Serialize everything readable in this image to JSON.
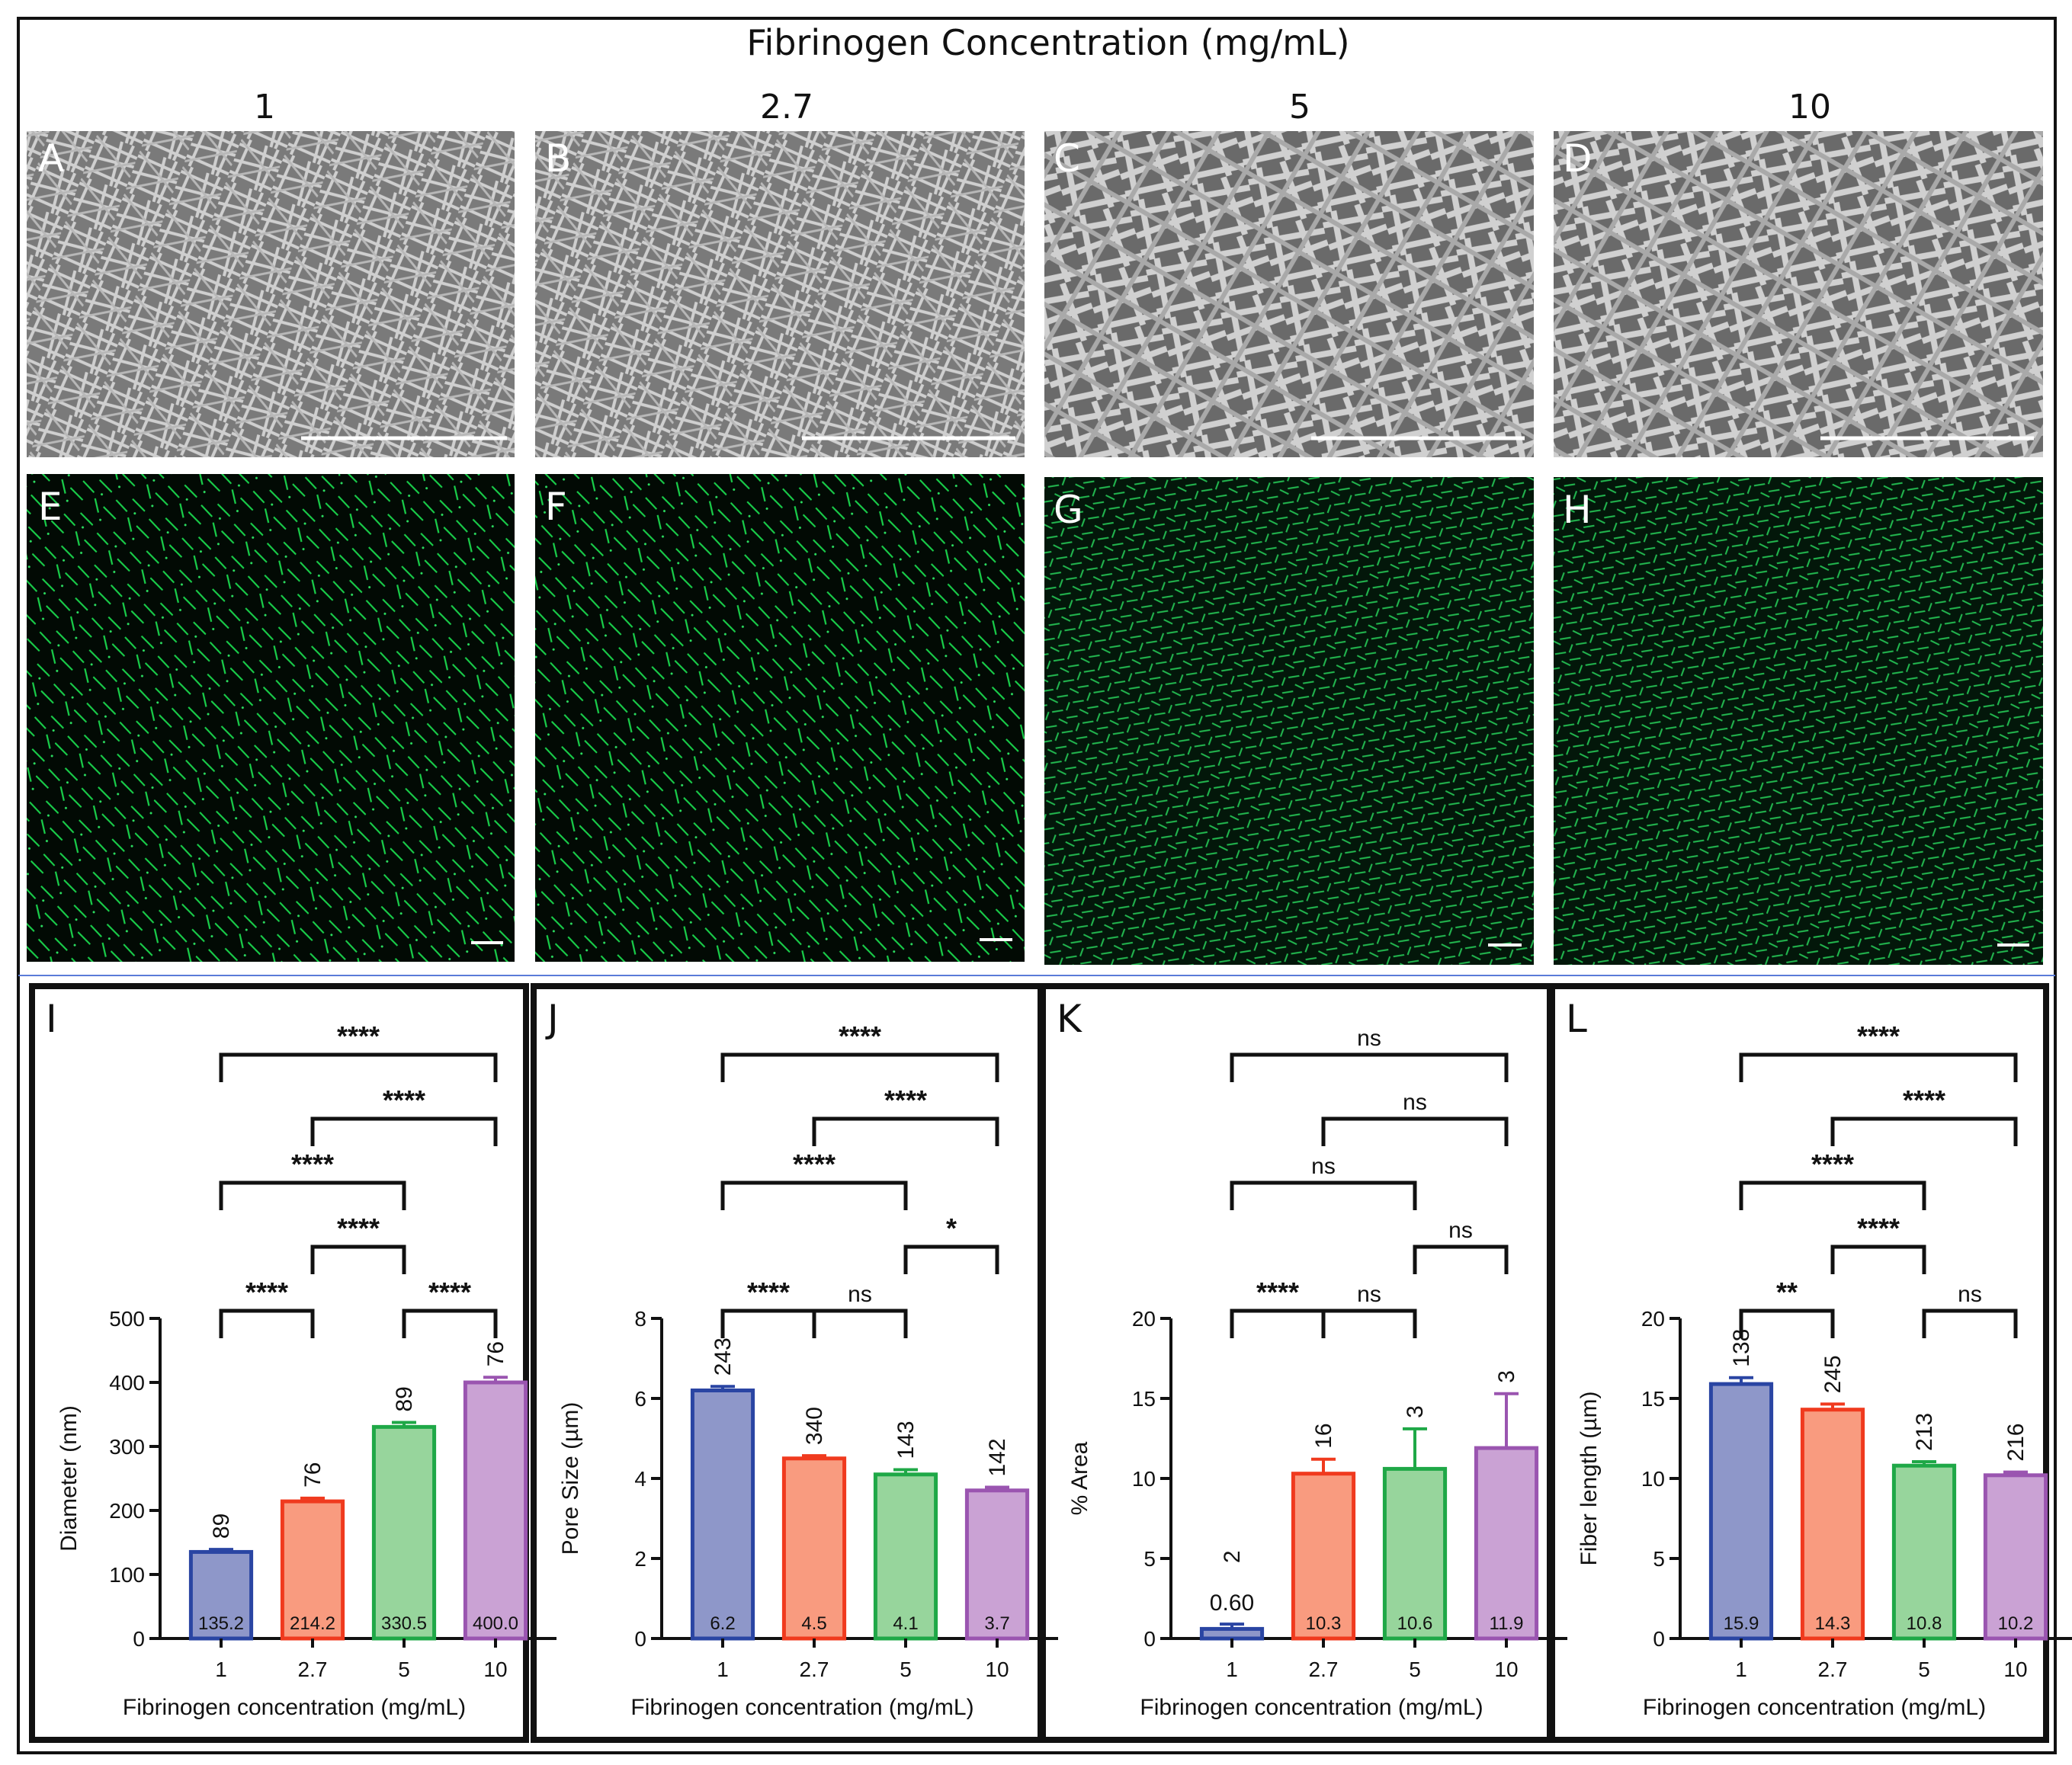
{
  "figure": {
    "title": "Fibrinogen Concentration (mg/mL)",
    "columns": [
      "1",
      "2.7",
      "5",
      "10"
    ],
    "sem_panels": [
      "A",
      "B",
      "C",
      "D"
    ],
    "fluor_panels": [
      "E",
      "F",
      "G",
      "H"
    ],
    "colors": {
      "sem": "#8a8a8a",
      "fluor": "#00c050",
      "bars": [
        {
          "fill": "#8e97c9",
          "stroke": "#2a45a3"
        },
        {
          "fill": "#f99b7f",
          "stroke": "#f03a1e"
        },
        {
          "fill": "#97d59c",
          "stroke": "#1fa847"
        },
        {
          "fill": "#caa2d4",
          "stroke": "#9a55b0"
        }
      ]
    }
  },
  "chart_data": [
    {
      "panel": "I",
      "type": "bar",
      "categories": [
        "1",
        "2.7",
        "5",
        "10"
      ],
      "values": [
        135.2,
        214.2,
        330.5,
        400.0
      ],
      "value_labels": [
        "135.2",
        "214.2",
        "330.5",
        "400.0"
      ],
      "errors": [
        4,
        5,
        7,
        8
      ],
      "n": [
        "89",
        "76",
        "89",
        "76"
      ],
      "xlabel": "Fibrinogen concentration (mg/mL)",
      "ylabel": "Diameter (nm)",
      "ylim": [
        0,
        500
      ],
      "yticks": [
        "0",
        "100",
        "200",
        "300",
        "400",
        "500"
      ],
      "comparisons": [
        {
          "a": 0,
          "b": 1,
          "label": "****"
        },
        {
          "a": 2,
          "b": 3,
          "label": "****"
        },
        {
          "a": 1,
          "b": 2,
          "label": "****"
        },
        {
          "a": 0,
          "b": 2,
          "label": "****"
        },
        {
          "a": 1,
          "b": 3,
          "label": "****"
        },
        {
          "a": 0,
          "b": 3,
          "label": "****"
        }
      ]
    },
    {
      "panel": "J",
      "type": "bar",
      "categories": [
        "1",
        "2.7",
        "5",
        "10"
      ],
      "values": [
        6.2,
        4.5,
        4.1,
        3.7
      ],
      "value_labels": [
        "6.2",
        "4.5",
        "4.1",
        "3.7"
      ],
      "errors": [
        0.1,
        0.07,
        0.12,
        0.08
      ],
      "n": [
        "243",
        "340",
        "143",
        "142"
      ],
      "xlabel": "Fibrinogen concentration (mg/mL)",
      "ylabel": "Pore Size (µm)",
      "ylim": [
        0,
        8
      ],
      "yticks": [
        "0",
        "2",
        "4",
        "6",
        "8"
      ],
      "comparisons": [
        {
          "a": 0,
          "b": 1,
          "label": "****"
        },
        {
          "a": 1,
          "b": 2,
          "label": "ns"
        },
        {
          "a": 2,
          "b": 3,
          "label": "*"
        },
        {
          "a": 0,
          "b": 2,
          "label": "****"
        },
        {
          "a": 1,
          "b": 3,
          "label": "****"
        },
        {
          "a": 0,
          "b": 3,
          "label": "****"
        }
      ]
    },
    {
      "panel": "K",
      "type": "bar",
      "categories": [
        "1",
        "2.7",
        "5",
        "10"
      ],
      "values": [
        0.6,
        10.3,
        10.6,
        11.9
      ],
      "value_labels": [
        "0.60",
        "10.3",
        "10.6",
        "11.9"
      ],
      "errors": [
        0.3,
        0.9,
        2.5,
        3.4
      ],
      "n": [
        "2",
        "16",
        "3",
        "3"
      ],
      "xlabel": "Fibrinogen concentration (mg/mL)",
      "ylabel": "% Area",
      "ylim": [
        0,
        20
      ],
      "yticks": [
        "0",
        "5",
        "10",
        "15",
        "20"
      ],
      "comparisons": [
        {
          "a": 0,
          "b": 1,
          "label": "****"
        },
        {
          "a": 1,
          "b": 2,
          "label": "ns"
        },
        {
          "a": 2,
          "b": 3,
          "label": "ns"
        },
        {
          "a": 0,
          "b": 2,
          "label": "ns"
        },
        {
          "a": 1,
          "b": 3,
          "label": "ns"
        },
        {
          "a": 0,
          "b": 3,
          "label": "ns"
        }
      ]
    },
    {
      "panel": "L",
      "type": "bar",
      "categories": [
        "1",
        "2.7",
        "5",
        "10"
      ],
      "values": [
        15.9,
        14.3,
        10.8,
        10.2
      ],
      "value_labels": [
        "15.9",
        "14.3",
        "10.8",
        "10.2"
      ],
      "errors": [
        0.4,
        0.35,
        0.25,
        0.2
      ],
      "n": [
        "138",
        "245",
        "213",
        "216"
      ],
      "xlabel": "Fibrinogen concentration (mg/mL)",
      "ylabel": "Fiber length (µm)",
      "ylim": [
        0,
        20
      ],
      "yticks": [
        "0",
        "5",
        "10",
        "15",
        "20"
      ],
      "comparisons": [
        {
          "a": 0,
          "b": 1,
          "label": "**"
        },
        {
          "a": 2,
          "b": 3,
          "label": "ns"
        },
        {
          "a": 1,
          "b": 2,
          "label": "****"
        },
        {
          "a": 0,
          "b": 2,
          "label": "****"
        },
        {
          "a": 1,
          "b": 3,
          "label": "****"
        },
        {
          "a": 0,
          "b": 3,
          "label": "****"
        }
      ]
    }
  ]
}
